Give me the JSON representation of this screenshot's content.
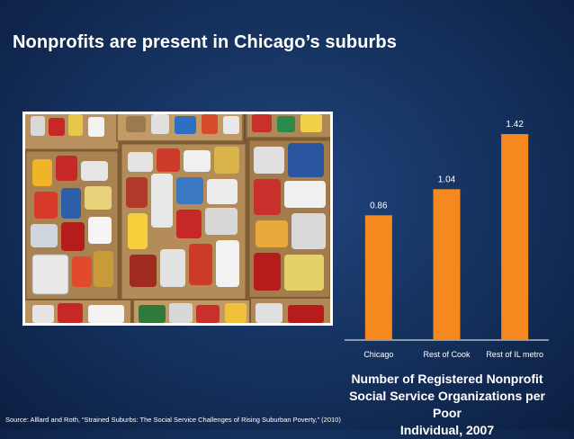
{
  "slide": {
    "title": "Nonprofits are present in Chicago’s suburbs",
    "source": "Source:  Alllard and Roth, “Strained Suburbs: The Social  Service Challenges of Rising Suburban Poverty,” (2010)"
  },
  "photo": {
    "subject": "cans-and-boxes-photo"
  },
  "chart_data": {
    "type": "bar",
    "categories": [
      "Chicago",
      "Rest of Cook",
      "Rest of IL metro"
    ],
    "values": [
      0.86,
      1.04,
      1.42
    ],
    "data_labels": [
      "0.86",
      "1.04",
      "1.42"
    ],
    "title_lines": [
      "Number of Registered Nonprofit",
      "Social Service Organizations per Poor",
      "Individual, 2007"
    ],
    "xlabel": "",
    "ylabel": "",
    "ylim": [
      0,
      1.6
    ],
    "grid": false,
    "legend": "none",
    "colors": {
      "bar": "#F5891F",
      "axis": "#ffffff",
      "text": "#ffffff"
    }
  }
}
